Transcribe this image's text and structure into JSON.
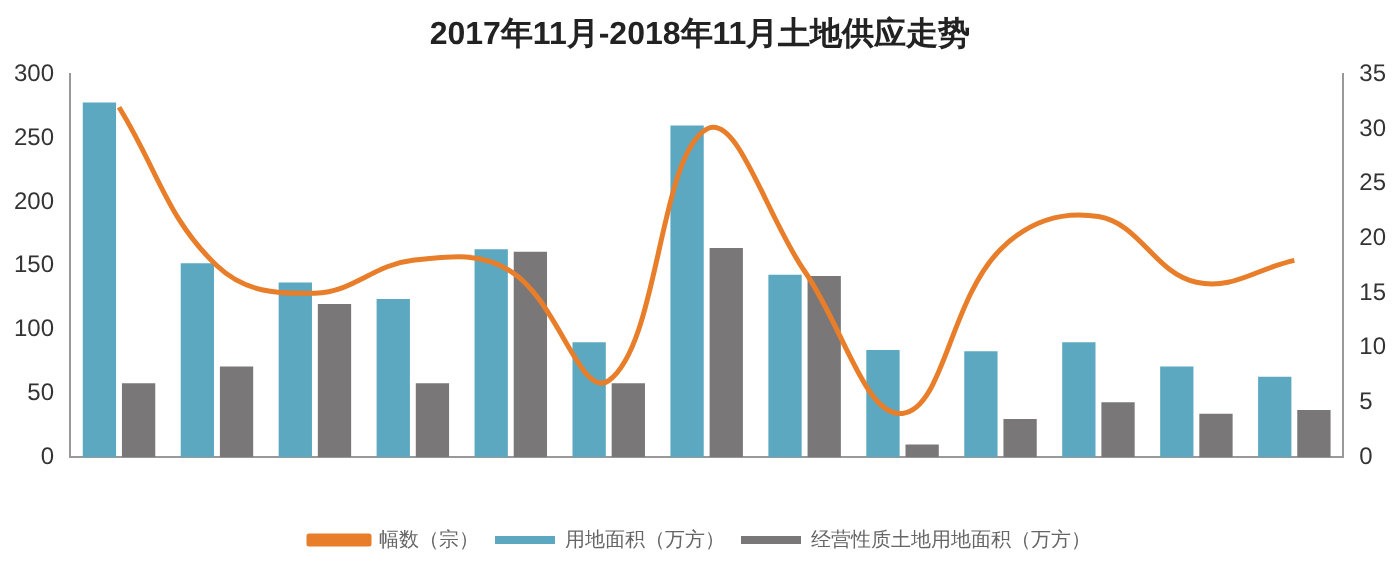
{
  "chart_data": {
    "type": "bar",
    "title": "2017年11月-2018年11月土地供应走势",
    "categories": [
      null,
      null,
      null,
      null,
      null,
      null,
      null,
      null,
      null,
      null,
      null,
      null,
      null
    ],
    "series": [
      {
        "name": "用地面积（万方）",
        "color": "#5ba8c0",
        "values": [
          278,
          152,
          137,
          124,
          163,
          90,
          260,
          143,
          84,
          83,
          90,
          71,
          63
        ]
      },
      {
        "name": "经营性质土地用地面积（万方）",
        "color": "#7a7779",
        "values": [
          58,
          71,
          120,
          58,
          161,
          58,
          164,
          142,
          10,
          30,
          43,
          34,
          37
        ]
      },
      {
        "name": "幅数（宗）",
        "type": "line",
        "axis": "y2",
        "color": "#e87d2a",
        "values": [
          32,
          17.5,
          15,
          18,
          17,
          7,
          30,
          17,
          4,
          19,
          22,
          16,
          18
        ]
      }
    ],
    "ylim": [
      0,
      300
    ],
    "yticks": [
      0,
      50,
      100,
      150,
      200,
      250,
      300
    ],
    "y2lim": [
      0,
      35
    ],
    "y2ticks": [
      0,
      5,
      10,
      15,
      20,
      25,
      30,
      35
    ],
    "grid": false,
    "legend": "bottom",
    "marker": "none"
  }
}
